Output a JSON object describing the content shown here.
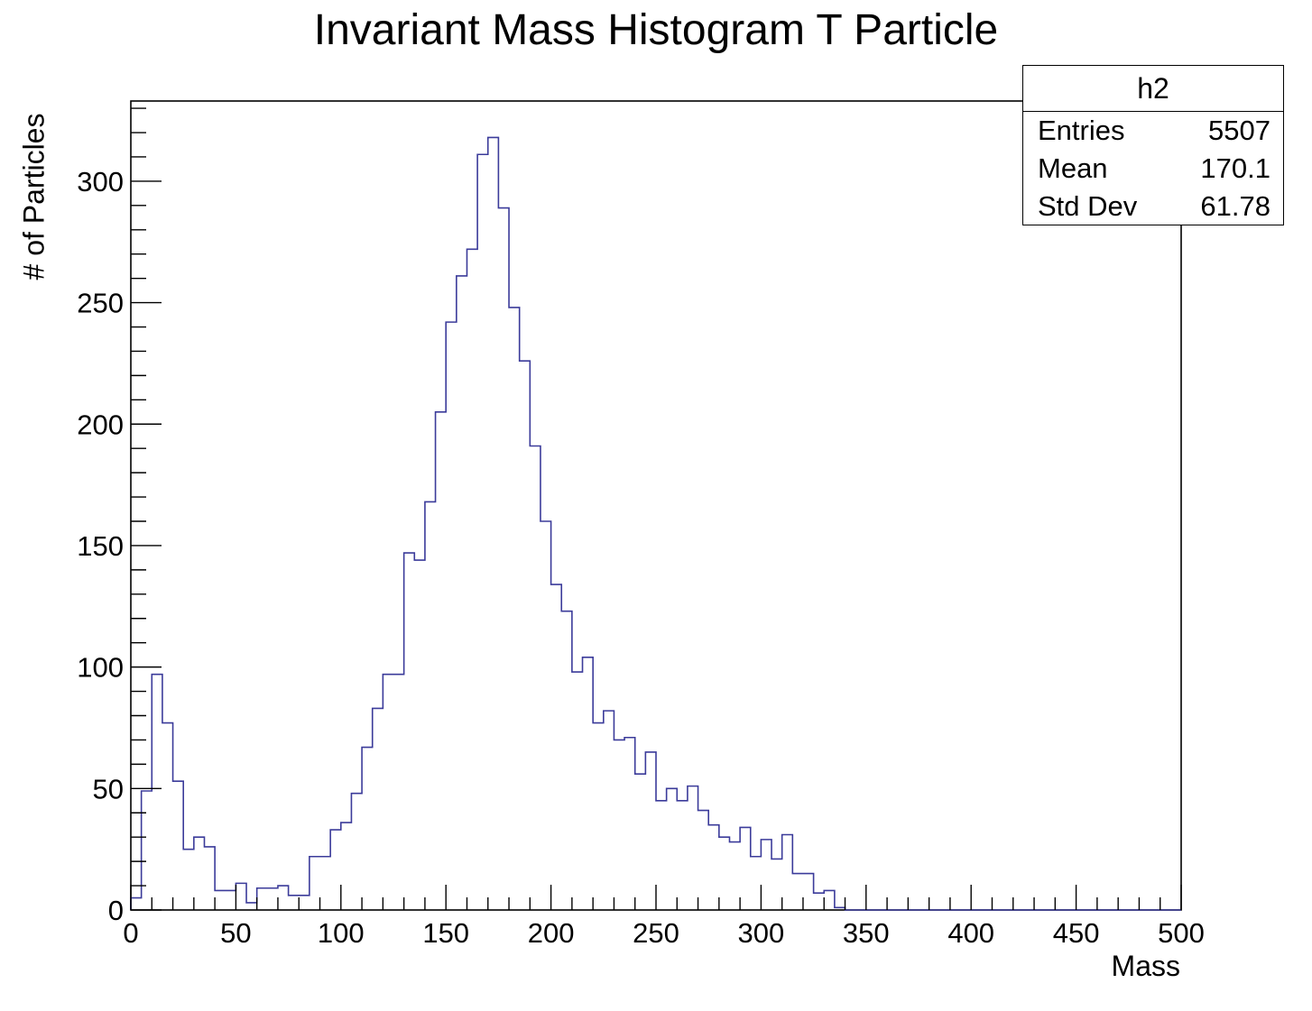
{
  "chart_data": {
    "type": "histogram",
    "title": "Invariant Mass Histogram T Particle",
    "xlabel": "Mass",
    "ylabel": "# of Particles",
    "xlim": [
      0,
      500
    ],
    "ylim": [
      0,
      333
    ],
    "bin_width": 5,
    "x_ticks": [
      "0",
      "50",
      "100",
      "150",
      "200",
      "250",
      "300",
      "350",
      "400",
      "450",
      "500"
    ],
    "y_ticks": [
      "0",
      "50",
      "100",
      "150",
      "200",
      "250",
      "300"
    ],
    "values": [
      5,
      49,
      97,
      77,
      53,
      25,
      30,
      26,
      8,
      8,
      11,
      3,
      9,
      9,
      10,
      6,
      6,
      22,
      22,
      33,
      36,
      48,
      67,
      83,
      97,
      97,
      147,
      144,
      168,
      205,
      242,
      261,
      272,
      311,
      318,
      289,
      248,
      226,
      191,
      160,
      134,
      123,
      98,
      104,
      77,
      82,
      70,
      71,
      56,
      65,
      45,
      50,
      45,
      51,
      41,
      35,
      30,
      28,
      34,
      22,
      29,
      21,
      31,
      15,
      15,
      7,
      8,
      1,
      0,
      0,
      0,
      0,
      0,
      0,
      0,
      0,
      0,
      0,
      0,
      0,
      0,
      0,
      0,
      0,
      0,
      0,
      0,
      0,
      0,
      0,
      0,
      0,
      0,
      0,
      0,
      0,
      0,
      0,
      0,
      0
    ],
    "line_color": "#3b3b9a",
    "grid": false,
    "stats_box": {
      "name": "h2",
      "rows": [
        {
          "label": "Entries",
          "value": "5507"
        },
        {
          "label": "Mean",
          "value": "170.1"
        },
        {
          "label": "Std Dev",
          "value": "61.78"
        }
      ]
    }
  }
}
